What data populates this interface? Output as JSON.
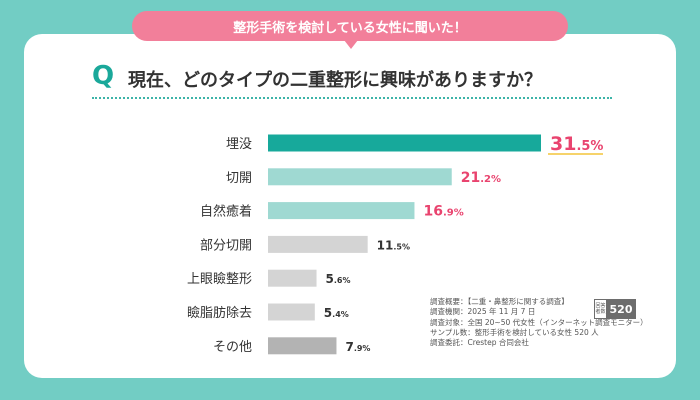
{
  "header": {
    "banner": "整形手術を検討している女性に聞いた！",
    "q_mark": "Q",
    "question": "現在、どのタイプの二重整形に興味がありますか？"
  },
  "colors": {
    "background": "#72cdc4",
    "banner": "#f27f9a",
    "top_bar": "#17a99b",
    "mid_bar": "#9fd9d2",
    "low_bar": "#d4d4d4",
    "other_bar": "#b3b3b3",
    "pink_text": "#e9446f",
    "dark_text": "#333333"
  },
  "chart_data": {
    "type": "bar",
    "orientation": "horizontal",
    "title": "現在、どのタイプの二重整形に興味がありますか？",
    "categories": [
      "埋没",
      "切開",
      "自然癒着",
      "部分切開",
      "上眼瞼整形",
      "瞼脂肪除去",
      "その他"
    ],
    "values": [
      31.5,
      21.2,
      16.9,
      11.5,
      5.6,
      5.4,
      7.9
    ],
    "value_labels": [
      {
        "int": "31",
        "dec": ".5%"
      },
      {
        "int": "21",
        "dec": ".2%"
      },
      {
        "int": "16",
        "dec": ".9%"
      },
      {
        "int": "11",
        "dec": ".5%"
      },
      {
        "int": "5",
        "dec": ".6%"
      },
      {
        "int": "5",
        "dec": ".4%"
      },
      {
        "int": "7",
        "dec": ".9%"
      }
    ],
    "unit": "%",
    "xlim": [
      0,
      31.5
    ],
    "axis_visible": false,
    "grid": false
  },
  "survey_note": {
    "lines": [
      "調査概要：【二重・鼻整形に関する調査】",
      "調査機関：2025 年 11 月 7 日",
      "調査対象：全国 20~50 代女性（インターネット調査モニター）",
      "サンプル数：整形手術を検討している女性 520 人",
      "調査委託：Crestep 合同会社"
    ],
    "stamp_label": "回答者数",
    "stamp_value": "520"
  }
}
